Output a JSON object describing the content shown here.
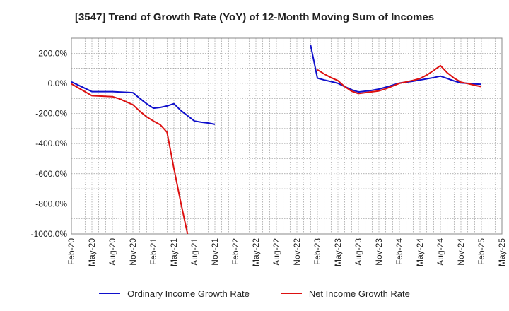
{
  "title": "[3547]  Trend of Growth Rate (YoY) of 12-Month Moving Sum of Incomes",
  "colors": {
    "ordinary": "#1010cc",
    "net": "#dd1111",
    "grid": "#999999"
  },
  "chart_data": {
    "type": "line",
    "title": "[3547]  Trend of Growth Rate (YoY) of 12-Month Moving Sum of Incomes",
    "xlabel": "",
    "ylabel": "",
    "x_ticks": [
      "Feb-20",
      "May-20",
      "Aug-20",
      "Nov-20",
      "Feb-21",
      "May-21",
      "Aug-21",
      "Nov-21",
      "Feb-22",
      "May-22",
      "Aug-22",
      "Nov-22",
      "Feb-23",
      "May-23",
      "Aug-23",
      "Nov-23",
      "Feb-24",
      "May-24",
      "Aug-24",
      "Nov-24",
      "Feb-25",
      "May-25"
    ],
    "y_ticks": [
      "200.0%",
      "0.0%",
      "-200.0%",
      "-400.0%",
      "-600.0%",
      "-800.0%",
      "-1000.0%"
    ],
    "y_tick_values": [
      200,
      0,
      -200,
      -400,
      -600,
      -800,
      -1000
    ],
    "ylim": [
      -1000,
      300
    ],
    "x_range": [
      "Feb-20",
      "May-25"
    ],
    "grid": true,
    "legend_position": "bottom",
    "series": [
      {
        "name": "Ordinary Income Growth Rate",
        "color": "#1010cc",
        "points": [
          [
            "Feb-20",
            10
          ],
          [
            "May-20",
            -55
          ],
          [
            "Aug-20",
            -55
          ],
          [
            "Nov-20",
            -62
          ],
          [
            "Dec-20",
            -100
          ],
          [
            "Jan-21",
            -135
          ],
          [
            "Feb-21",
            -165
          ],
          [
            "Mar-21",
            -160
          ],
          [
            "Apr-21",
            -150
          ],
          [
            "May-21",
            -135
          ],
          [
            "Jun-21",
            -180
          ],
          [
            "Jul-21",
            -215
          ],
          [
            "Aug-21",
            -250
          ],
          [
            "Sep-21",
            -258
          ],
          [
            "Oct-21",
            -263
          ],
          [
            "Nov-21",
            -272
          ],
          null,
          [
            "Jan-23",
            255
          ],
          [
            "Feb-23",
            35
          ],
          [
            "Mar-23",
            22
          ],
          [
            "Apr-23",
            12
          ],
          [
            "May-23",
            0
          ],
          [
            "Jun-23",
            -22
          ],
          [
            "Jul-23",
            -42
          ],
          [
            "Aug-23",
            -57
          ],
          [
            "Sep-23",
            -52
          ],
          [
            "Oct-23",
            -46
          ],
          [
            "Nov-23",
            -38
          ],
          [
            "Dec-23",
            -25
          ],
          [
            "Jan-24",
            -12
          ],
          [
            "Feb-24",
            2
          ],
          [
            "Mar-24",
            8
          ],
          [
            "Apr-24",
            14
          ],
          [
            "May-24",
            22
          ],
          [
            "Jun-24",
            30
          ],
          [
            "Jul-24",
            38
          ],
          [
            "Aug-24",
            48
          ],
          [
            "Sep-24",
            32
          ],
          [
            "Oct-24",
            16
          ],
          [
            "Nov-24",
            3
          ],
          [
            "Dec-24",
            0
          ],
          [
            "Jan-25",
            -4
          ],
          [
            "Feb-25",
            -6
          ]
        ]
      },
      {
        "name": "Net Income Growth Rate",
        "color": "#dd1111",
        "points": [
          [
            "Feb-20",
            -3
          ],
          [
            "May-20",
            -82
          ],
          [
            "Aug-20",
            -88
          ],
          [
            "Sep-20",
            -102
          ],
          [
            "Oct-20",
            -122
          ],
          [
            "Nov-20",
            -142
          ],
          [
            "Dec-20",
            -185
          ],
          [
            "Jan-21",
            -222
          ],
          [
            "Feb-21",
            -250
          ],
          [
            "Mar-21",
            -275
          ],
          [
            "Apr-21",
            -325
          ],
          [
            "May-21",
            -565
          ],
          [
            "Jun-21",
            -790
          ],
          [
            "Jul-21",
            -1000
          ],
          null,
          [
            "Feb-23",
            90
          ],
          [
            "Mar-23",
            62
          ],
          [
            "Apr-23",
            38
          ],
          [
            "May-23",
            18
          ],
          [
            "Jun-23",
            -22
          ],
          [
            "Jul-23",
            -52
          ],
          [
            "Aug-23",
            -68
          ],
          [
            "Sep-23",
            -62
          ],
          [
            "Oct-23",
            -56
          ],
          [
            "Nov-23",
            -50
          ],
          [
            "Dec-23",
            -36
          ],
          [
            "Jan-24",
            -18
          ],
          [
            "Feb-24",
            0
          ],
          [
            "Mar-24",
            10
          ],
          [
            "Apr-24",
            20
          ],
          [
            "May-24",
            32
          ],
          [
            "Jun-24",
            55
          ],
          [
            "Jul-24",
            85
          ],
          [
            "Aug-24",
            118
          ],
          [
            "Sep-24",
            70
          ],
          [
            "Oct-24",
            35
          ],
          [
            "Nov-24",
            8
          ],
          [
            "Dec-24",
            -2
          ],
          [
            "Jan-25",
            -12
          ],
          [
            "Feb-25",
            -22
          ]
        ]
      }
    ]
  }
}
